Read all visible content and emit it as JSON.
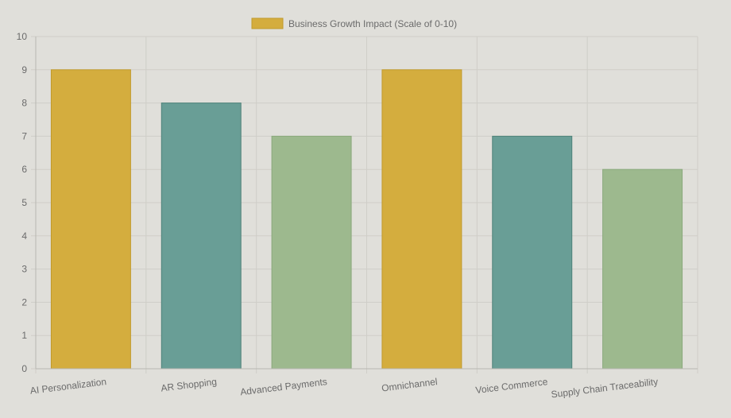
{
  "chart_data": {
    "type": "bar",
    "title": "",
    "xlabel": "",
    "ylabel": "",
    "ylim": [
      0,
      10
    ],
    "yticks": [
      0,
      1,
      2,
      3,
      4,
      5,
      6,
      7,
      8,
      9,
      10
    ],
    "grid": true,
    "legend_position": "top-center",
    "categories": [
      "AI Personalization",
      "AR Shopping",
      "Advanced Payments",
      "Omnichannel",
      "Voice Commerce",
      "Supply Chain Traceability"
    ],
    "series": [
      {
        "name": "Business Growth Impact (Scale of 0-10)",
        "values": [
          9,
          8,
          7,
          9,
          7,
          6
        ],
        "colors": [
          "#d4ad3e",
          "#699e96",
          "#9db98e",
          "#d4ad3e",
          "#699e96",
          "#9db98e"
        ],
        "border_colors": [
          "#c09a2c",
          "#4f8279",
          "#8aa97c",
          "#c09a2c",
          "#4f8279",
          "#8aa97c"
        ],
        "legend_color": "#d4ad3e"
      }
    ],
    "colors": {
      "background": "#e0dfda",
      "grid": "#cfcec8",
      "axis": "#b8b7b1",
      "text": "#6b6b6b"
    }
  }
}
